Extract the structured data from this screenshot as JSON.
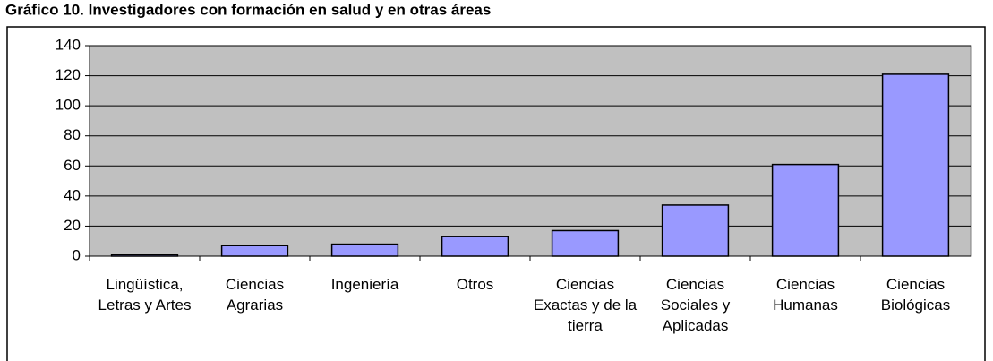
{
  "chart_data": {
    "type": "bar",
    "title": "Gráfico 10. Investigadores con formación en salud y en otras áreas",
    "categories": [
      "Lingüística, Letras y Artes",
      "Ciencias Agrarias",
      "Ingeniería",
      "Otros",
      "Ciencias Exactas y de la tierra",
      "Ciencias Sociales y Aplicadas",
      "Ciencias Humanas",
      "Ciencias Biológicas"
    ],
    "values": [
      1,
      7,
      8,
      13,
      17,
      34,
      61,
      121
    ],
    "color": "#9999ff",
    "ylim": [
      0,
      140
    ],
    "yticks": [
      0,
      20,
      40,
      60,
      80,
      100,
      120,
      140
    ],
    "grid": true
  }
}
